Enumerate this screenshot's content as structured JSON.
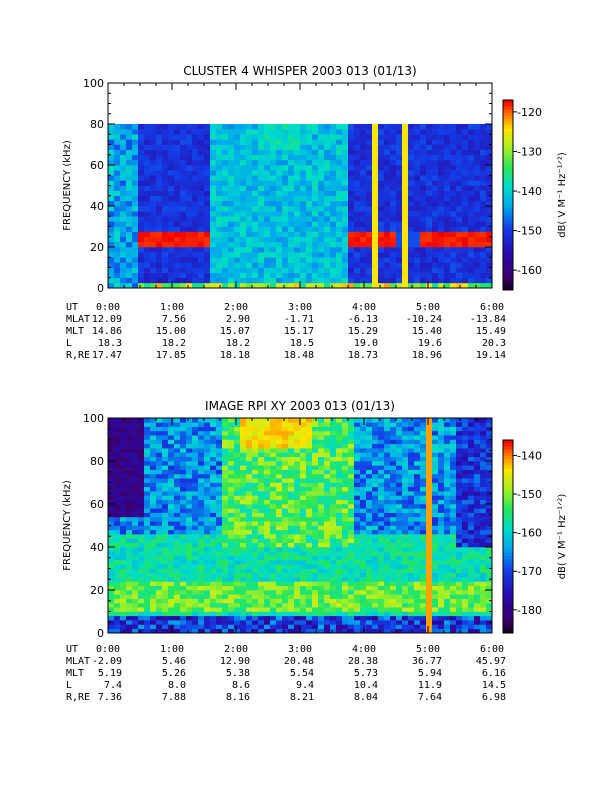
{
  "chart_data": [
    {
      "type": "heatmap",
      "title": "CLUSTER 4 WHISPER 2003 013 (01/13)",
      "ylabel": "FREQUENCY (kHz)",
      "xlabel": "UT",
      "ylim": [
        0,
        100
      ],
      "yticks": [
        "0",
        "20",
        "40",
        "60",
        "80",
        "100"
      ],
      "xticks": [
        "0:00",
        "1:00",
        "2:00",
        "3:00",
        "4:00",
        "5:00",
        "6:00"
      ],
      "data_ylim": [
        0,
        80
      ],
      "colorbar": {
        "label": "dB( V M⁻¹ Hz⁻¹ᐟ²)",
        "min": -165,
        "max": -117,
        "ticks": [
          "-120",
          "-130",
          "-140",
          "-150",
          "-160"
        ]
      },
      "ephemeris": [
        {
          "label": "UT",
          "values": [
            "0:00",
            "1:00",
            "2:00",
            "3:00",
            "4:00",
            "5:00",
            "6:00"
          ]
        },
        {
          "label": "MLAT",
          "values": [
            "12.09",
            "7.56",
            "2.90",
            "-1.71",
            "-6.13",
            "-10.24",
            "-13.84"
          ]
        },
        {
          "label": "MLT",
          "values": [
            "14.86",
            "15.00",
            "15.07",
            "15.17",
            "15.29",
            "15.40",
            "15.49"
          ]
        },
        {
          "label": "L",
          "values": [
            "18.3",
            "18.2",
            "18.2",
            "18.5",
            "19.0",
            "19.6",
            "20.3"
          ]
        },
        {
          "label": "R,RE",
          "values": [
            "17.47",
            "17.85",
            "18.18",
            "18.48",
            "18.73",
            "18.96",
            "19.14"
          ]
        }
      ]
    },
    {
      "type": "heatmap",
      "title": "IMAGE RPI XY 2003 013 (01/13)",
      "ylabel": "FREQUENCY (kHz)",
      "xlabel": "UT",
      "ylim": [
        0,
        100
      ],
      "yticks": [
        "0",
        "20",
        "40",
        "60",
        "80",
        "100"
      ],
      "xticks": [
        "0:00",
        "1:00",
        "2:00",
        "3:00",
        "4:00",
        "5:00",
        "6:00"
      ],
      "data_ylim": [
        0,
        100
      ],
      "colorbar": {
        "label": "dB( V M⁻¹ Hz⁻¹ᐟ²)",
        "min": -186,
        "max": -136,
        "ticks": [
          "-140",
          "-150",
          "-160",
          "-170",
          "-180"
        ]
      },
      "ephemeris": [
        {
          "label": "UT",
          "values": [
            "0:00",
            "1:00",
            "2:00",
            "3:00",
            "4:00",
            "5:00",
            "6:00"
          ]
        },
        {
          "label": "MLAT",
          "values": [
            "-2.09",
            "5.46",
            "12.90",
            "20.48",
            "28.38",
            "36.77",
            "45.97"
          ]
        },
        {
          "label": "MLT",
          "values": [
            "5.19",
            "5.26",
            "5.38",
            "5.54",
            "5.73",
            "5.94",
            "6.16"
          ]
        },
        {
          "label": "L",
          "values": [
            "7.4",
            "8.0",
            "8.6",
            "9.4",
            "10.4",
            "11.9",
            "14.5"
          ]
        },
        {
          "label": "R,RE",
          "values": [
            "7.36",
            "7.88",
            "8.16",
            "8.21",
            "8.04",
            "7.64",
            "6.98"
          ]
        }
      ]
    }
  ]
}
